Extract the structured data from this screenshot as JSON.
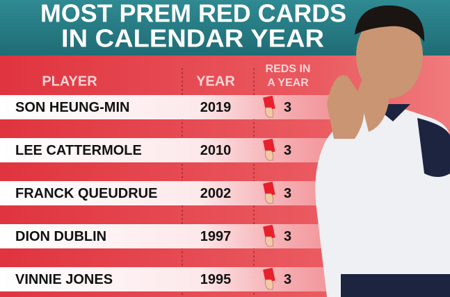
{
  "header": {
    "title": [
      "MOST PREM RED CARDS",
      "IN CALENDAR YEAR"
    ]
  },
  "table": {
    "columns": [
      "PLAYER",
      "YEAR",
      [
        "REDS IN",
        "A YEAR"
      ]
    ],
    "rows": [
      [
        "SON HEUNG-MIN",
        2019,
        3
      ],
      [
        "LEE CATTERMOLE",
        2010,
        3
      ],
      [
        "FRANCK QUEUDRUE",
        2002,
        3
      ],
      [
        "DION DUBLIN",
        1997,
        3
      ],
      [
        "VINNIE JONES",
        1995,
        3
      ]
    ]
  }
}
